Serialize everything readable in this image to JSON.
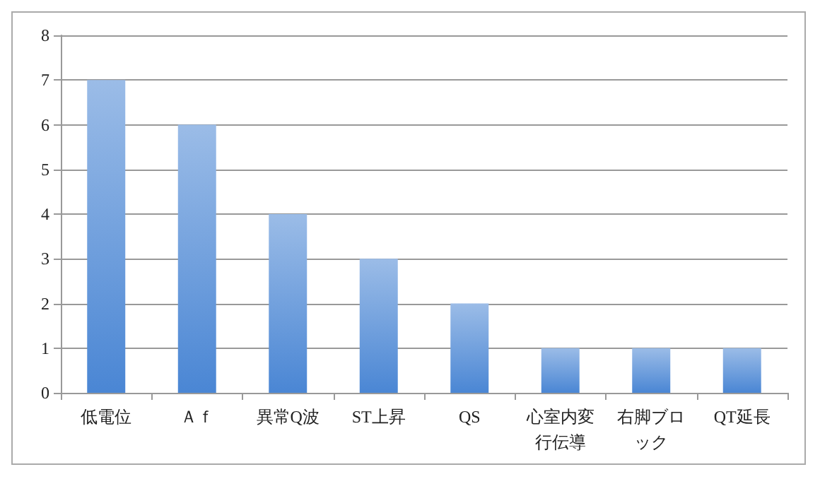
{
  "chart_data": {
    "type": "bar",
    "categories": [
      "低電位",
      "Ａｆ",
      "異常Q波",
      "ST上昇",
      "QS",
      "心室内変行伝導",
      "右脚ブロック",
      "QT延長"
    ],
    "values": [
      7,
      6,
      4,
      3,
      2,
      1,
      1,
      1
    ],
    "color": "#4a86d4",
    "ylim": [
      0,
      8
    ],
    "yticks": [
      0,
      1,
      2,
      3,
      4,
      5,
      6,
      7,
      8
    ],
    "grid": "y"
  }
}
